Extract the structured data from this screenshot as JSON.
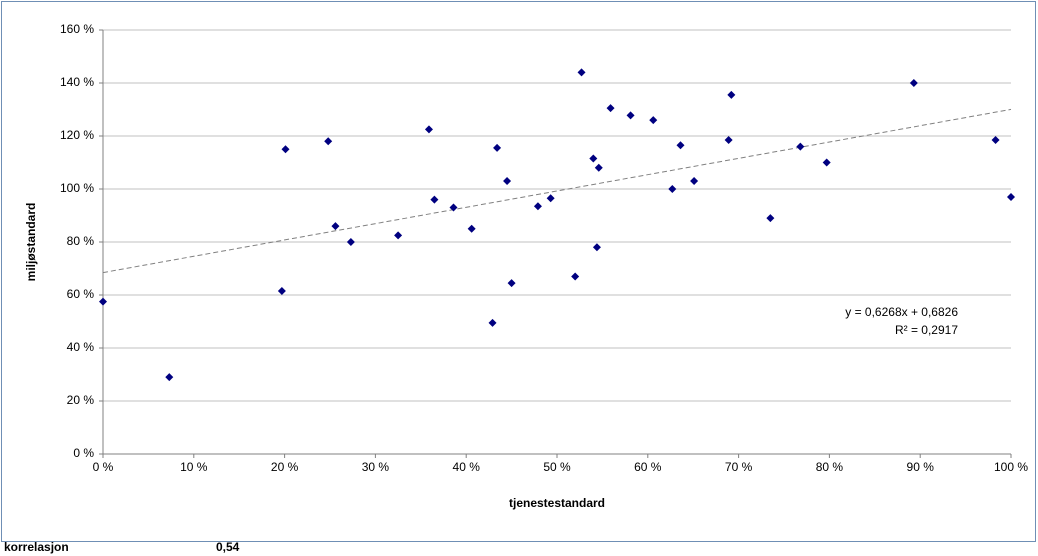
{
  "chart_data": {
    "type": "scatter",
    "x_label": "tjenestestandard",
    "y_label": "miljøstandard",
    "annotations": [
      "y = 0,6268x + 0,6826",
      "R² = 0,2917"
    ],
    "correlation_label": "korrelasjon",
    "correlation_value": "0,54",
    "color": "#000080",
    "trendline": true,
    "grid": true,
    "x": [
      0,
      7.3,
      19.7,
      20.1,
      24.8,
      25.6,
      27.3,
      32.5,
      35.9,
      36.5,
      38.6,
      40.6,
      42.9,
      43.4,
      44.5,
      45,
      47.9,
      49.3,
      52,
      52.7,
      54,
      54.6,
      54.4,
      55.9,
      58.1,
      60.6,
      62.7,
      63.6,
      65.1,
      68.9,
      69.2,
      73.5,
      76.8,
      79.7,
      89.3,
      98.3,
      100
    ],
    "values": [
      57.5,
      29,
      61.5,
      115,
      118,
      86,
      80,
      82.5,
      122.5,
      96,
      93,
      85,
      49.5,
      115.5,
      103,
      64.5,
      93.5,
      96.5,
      67,
      144,
      111.5,
      108,
      78,
      130.5,
      127.8,
      126,
      100,
      116.5,
      103,
      118.5,
      135.5,
      89,
      116,
      110,
      140,
      118.5,
      97
    ],
    "xlim": [
      0,
      100
    ],
    "xticks": [
      {
        "value": 0,
        "label": "0 %"
      },
      {
        "value": 10,
        "label": "10 %"
      },
      {
        "value": 20,
        "label": "20 %"
      },
      {
        "value": 30,
        "label": "30 %"
      },
      {
        "value": 40,
        "label": "40 %"
      },
      {
        "value": 50,
        "label": "50 %"
      },
      {
        "value": 60,
        "label": "60 %"
      },
      {
        "value": 70,
        "label": "70 %"
      },
      {
        "value": 80,
        "label": "80 %"
      },
      {
        "value": 90,
        "label": "90 %"
      },
      {
        "value": 100,
        "label": "100 %"
      }
    ],
    "ylim": [
      0,
      160
    ],
    "yticks": [
      {
        "value": 0,
        "label": "0 %"
      },
      {
        "value": 20,
        "label": "20 %"
      },
      {
        "value": 40,
        "label": "40 %"
      },
      {
        "value": 60,
        "label": "60 %"
      },
      {
        "value": 80,
        "label": "80 %"
      },
      {
        "value": 100,
        "label": "100 %"
      },
      {
        "value": 120,
        "label": "120 %"
      },
      {
        "value": 140,
        "label": "140 %"
      },
      {
        "value": 160,
        "label": "160 %"
      }
    ]
  }
}
